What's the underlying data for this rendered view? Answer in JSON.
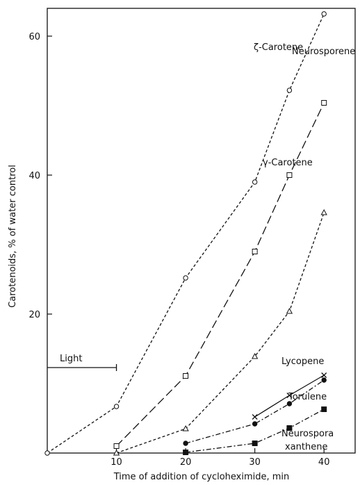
{
  "chart_data": {
    "type": "scatter",
    "x_label": "Time of addition of cycloheximide,  min",
    "y_label": "Carotenoids,   % of water control",
    "xlim": [
      0,
      44.5
    ],
    "ylim": [
      0,
      64
    ],
    "xticks": [
      10,
      20,
      30,
      40
    ],
    "yticks": [
      20,
      40,
      60
    ],
    "annotation": {
      "label": "Light",
      "x": [
        0,
        10
      ],
      "y": 12.3
    },
    "series": [
      {
        "name": "ζ-Carotene",
        "color": "#111111",
        "marker": "circle",
        "linestyle": "short-dash",
        "x": [
          0,
          10,
          20,
          30,
          35,
          40
        ],
        "values": [
          0,
          6.7,
          25.2,
          39,
          52.2,
          63.2
        ]
      },
      {
        "name": "Neurosporene",
        "color": "#111111",
        "marker": "square",
        "linestyle": "long-dash",
        "x": [
          10,
          20,
          30,
          35,
          40
        ],
        "values": [
          1,
          11.1,
          29,
          40,
          50.4
        ]
      },
      {
        "name": "γ-Carotene",
        "color": "#111111",
        "marker": "triangle",
        "linestyle": "short-dash",
        "x": [
          10,
          20,
          30,
          35,
          40
        ],
        "values": [
          0,
          3.5,
          13.9,
          20.4,
          34.6
        ]
      },
      {
        "name": "Lycopene",
        "color": "#111111",
        "marker": "x",
        "linestyle": "solid",
        "x": [
          30,
          35,
          40
        ],
        "values": [
          5.2,
          8.3,
          11.2
        ]
      },
      {
        "name": "Torulene",
        "color": "#111111",
        "marker": "filled-circle",
        "linestyle": "dash-dot",
        "x": [
          20,
          30,
          35,
          40
        ],
        "values": [
          1.4,
          4.2,
          7.1,
          10.5
        ]
      },
      {
        "name": "Neurospora xanthene",
        "color": "#111111",
        "marker": "filled-square",
        "linestyle": "dash-dot",
        "x": [
          20,
          30,
          35,
          40
        ],
        "values": [
          0.1,
          1.4,
          3.6,
          6.3
        ]
      }
    ]
  }
}
